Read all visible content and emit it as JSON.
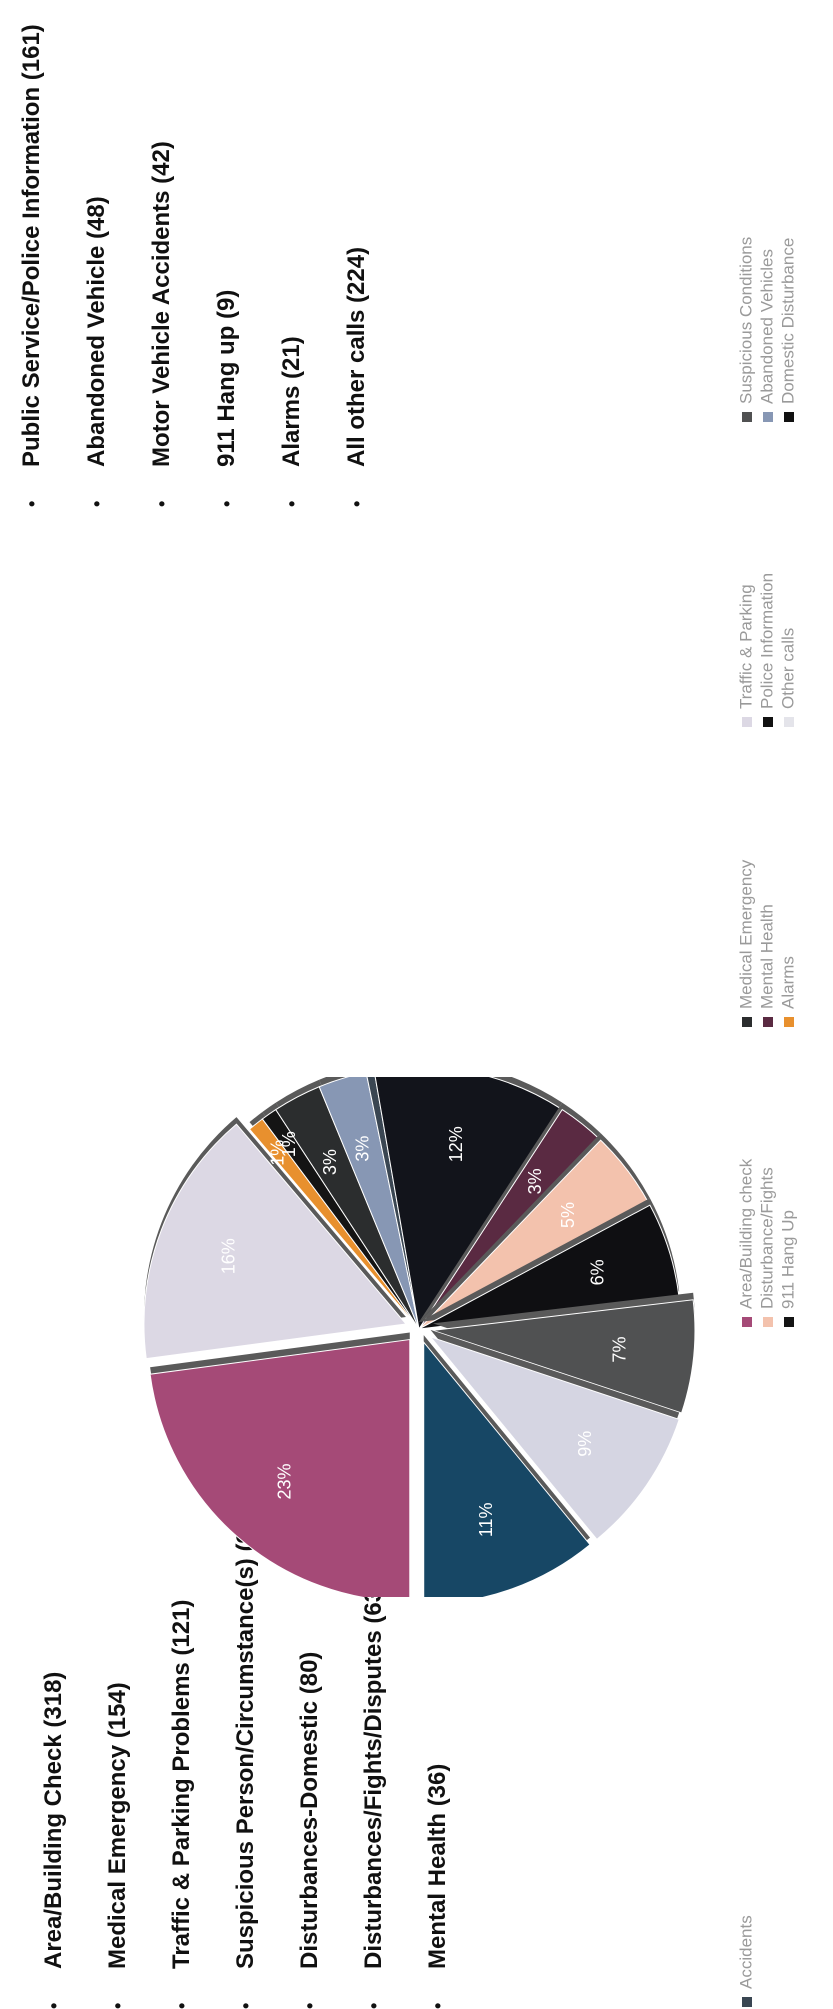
{
  "left_list": [
    "Area/Building Check (318)",
    "Medical Emergency (154)",
    "Traffic & Parking Problems (121)",
    "Suspicious Person/Circumstance(s) (93)",
    "Disturbances-Domestic (80)",
    "Disturbances/Fights/Disputes (63)",
    "Mental Health (36)"
  ],
  "right_list": [
    "Public Service/Police Information (161)",
    "Abandoned Vehicle (48)",
    "Motor Vehicle Accidents (42)",
    "911 Hang up (9)",
    "Alarms (21)",
    "All other calls (224)"
  ],
  "bullet": "•",
  "chart_data": {
    "type": "pie",
    "slices": [
      {
        "label": "Area/Building check",
        "value": 23,
        "text": "23%",
        "color": "#a54a77",
        "exploded": true
      },
      {
        "label": "Other calls",
        "value": 16,
        "text": "16%",
        "color": "#dcd8e4",
        "exploded": true
      },
      {
        "label": "Alarms",
        "value": 1,
        "text": "1%",
        "color": "#e8902e",
        "exploded": false
      },
      {
        "label": "911 Hang Up",
        "value": 1,
        "text": "1%",
        "color": "#141414",
        "exploded": false
      },
      {
        "label": "Suspicious Conditions",
        "value": 3,
        "text": "3%",
        "color": "#2b2d2e",
        "exploded": false
      },
      {
        "label": "Abandoned Vehicles",
        "value": 3,
        "text": "3%",
        "color": "#8797b4",
        "exploded": false
      },
      {
        "label": "Accidents",
        "value": 0.5,
        "text": "",
        "color": "#3a4652",
        "exploded": false
      },
      {
        "label": "Police Information",
        "value": 12,
        "text": "12%",
        "color": "#12141b",
        "exploded": false
      },
      {
        "label": "Mental Health",
        "value": 3,
        "text": "3%",
        "color": "#5a2a42",
        "exploded": false
      },
      {
        "label": "Disturbance/Fights",
        "value": 5,
        "text": "5%",
        "color": "#f3c2ad",
        "exploded": false
      },
      {
        "label": "Domestic Disturbance",
        "value": 6,
        "text": "6%",
        "color": "#0f0f12",
        "exploded": false
      },
      {
        "label": "Suspicious Conditions",
        "value": 7,
        "text": "7%",
        "color": "#505152",
        "exploded": true
      },
      {
        "label": "Traffic & Parking",
        "value": 9,
        "text": "9%",
        "color": "#d5d5e2",
        "exploded": true
      },
      {
        "label": "Medical Emergency",
        "value": 11,
        "text": "11%",
        "color": "#174765",
        "exploded": true
      }
    ],
    "legend": [
      {
        "label": "Area/Building check",
        "color": "#a54a77"
      },
      {
        "label": "Disturbance/Fights",
        "color": "#f3c2ad"
      },
      {
        "label": "911 Hang Up",
        "color": "#141414"
      },
      {
        "label": "Medical Emergency",
        "color": "#2b2d2e"
      },
      {
        "label": "Mental Health",
        "color": "#5a2a42"
      },
      {
        "label": "Alarms",
        "color": "#e8902e"
      },
      {
        "label": "Traffic & Parking",
        "color": "#dcd8e4"
      },
      {
        "label": "Police Information",
        "color": "#111111"
      },
      {
        "label": "Other calls",
        "color": "#e4e4ea"
      },
      {
        "label": "Suspicious Conditions",
        "color": "#505152"
      },
      {
        "label": "Abandoned Vehicles",
        "color": "#8797b4"
      },
      {
        "label": "Domestic Disturbance",
        "color": "#111111"
      },
      {
        "label": "Accidents",
        "color": "#3a4652"
      }
    ],
    "legend_placement": "bottom",
    "title": "",
    "xlabel": "",
    "ylabel": ""
  }
}
